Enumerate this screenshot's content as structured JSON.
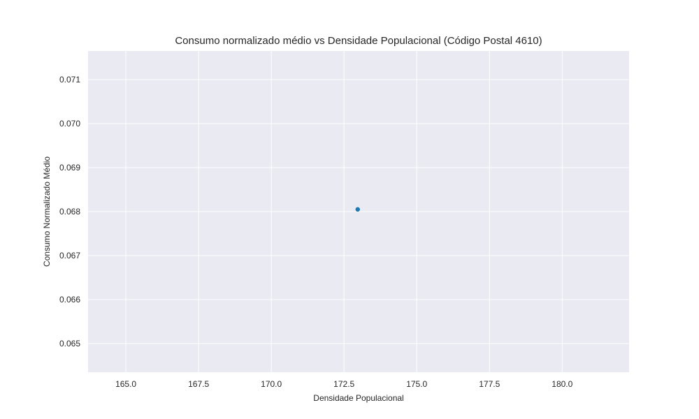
{
  "chart_data": {
    "type": "scatter",
    "title": "Consumo normalizado médio vs Densidade Populacional (Código Postal 4610)",
    "xlabel": "Densidade Populacional",
    "ylabel": "Consumo Normalizado Médio",
    "xlim": [
      163.7,
      182.3
    ],
    "ylim": [
      0.06435,
      0.07165
    ],
    "x_ticks": [
      165.0,
      167.5,
      170.0,
      172.5,
      175.0,
      177.5,
      180.0
    ],
    "x_tick_labels": [
      "165.0",
      "167.5",
      "170.0",
      "172.5",
      "175.0",
      "177.5",
      "180.0"
    ],
    "y_ticks": [
      0.065,
      0.066,
      0.067,
      0.068,
      0.069,
      0.07,
      0.071
    ],
    "y_tick_labels": [
      "0.065",
      "0.066",
      "0.067",
      "0.068",
      "0.069",
      "0.070",
      "0.071"
    ],
    "grid": true,
    "points": [
      {
        "x": 172.97,
        "y": 0.06805
      }
    ],
    "colors": {
      "point": "#1f77b4",
      "plot_background": "#eaeaf2",
      "grid": "#ffffff"
    }
  }
}
